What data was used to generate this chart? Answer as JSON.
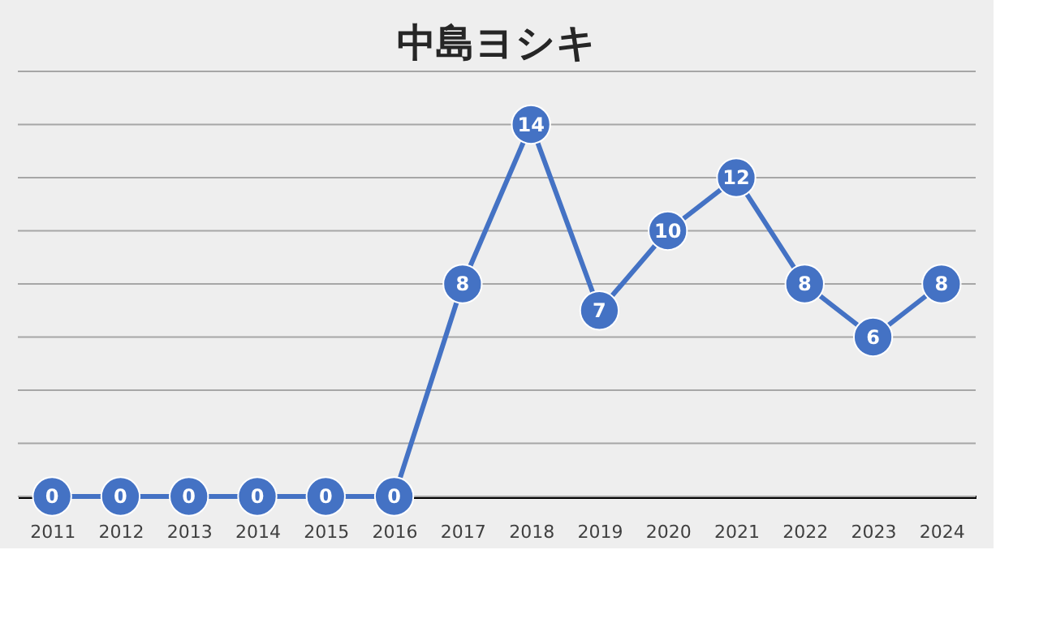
{
  "chart_data": {
    "type": "line",
    "title": "中島ヨシキ",
    "categories": [
      "2011",
      "2012",
      "2013",
      "2014",
      "2015",
      "2016",
      "2017",
      "2018",
      "2019",
      "2020",
      "2021",
      "2022",
      "2023",
      "2024"
    ],
    "series": [
      {
        "color": "#4472c4",
        "values": [
          0,
          0,
          0,
          0,
          0,
          0,
          8,
          14,
          7,
          10,
          12,
          8,
          6,
          8
        ]
      }
    ],
    "ylim": [
      0,
      16
    ],
    "yticks": [
      {
        "value": 0,
        "label": null
      },
      {
        "value": 2,
        "label": null
      },
      {
        "value": 4,
        "label": null
      },
      {
        "value": 6,
        "label": null
      },
      {
        "value": 8,
        "label": null
      },
      {
        "value": 10,
        "label": null
      },
      {
        "value": 12,
        "label": null
      },
      {
        "value": 14,
        "label": null
      },
      {
        "value": 16,
        "label": null
      }
    ],
    "tick_labels": "x",
    "grid": "y",
    "marker": "circle",
    "line_style": "solid",
    "data_labels": true,
    "legend": false
  }
}
